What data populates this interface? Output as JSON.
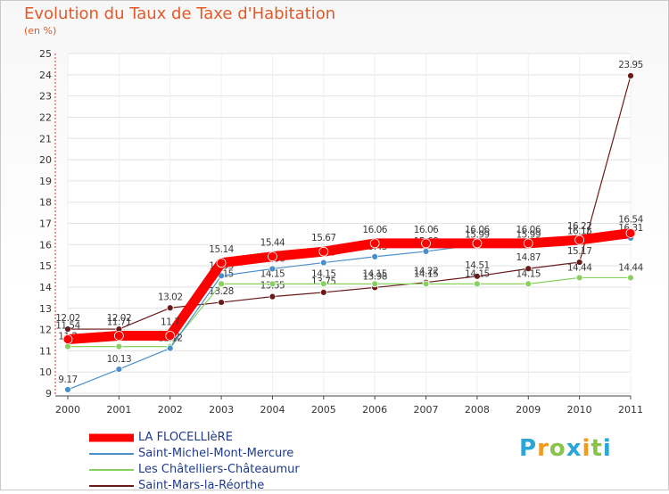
{
  "chart_data": {
    "type": "line",
    "title": "Evolution du Taux de Taxe d'Habitation",
    "ylabel": "(en %)",
    "xlabel": "",
    "ylim": [
      9,
      25
    ],
    "yticks": [
      9,
      10,
      11,
      12,
      13,
      14,
      15,
      16,
      17,
      18,
      19,
      20,
      21,
      22,
      23,
      24,
      25
    ],
    "categories": [
      "2000",
      "2001",
      "2002",
      "2003",
      "2004",
      "2005",
      "2006",
      "2007",
      "2008",
      "2009",
      "2010",
      "2011"
    ],
    "series": [
      {
        "name": "Saint-Mars-la-Réorthe",
        "color": "#6b1a1a",
        "values": [
          12.02,
          12.02,
          13.02,
          13.28,
          13.55,
          13.75,
          13.98,
          14.22,
          14.51,
          14.87,
          15.17,
          23.95
        ],
        "labels": [
          "12.02",
          "12.02",
          "13.02",
          "13.28",
          "13.55",
          "13.75",
          "13.98",
          "14.22",
          "14.51",
          "14.87",
          "15.17",
          "23.95"
        ]
      },
      {
        "name": "Les Châtelliers-Châteaumur",
        "color": "#88d160",
        "values": [
          11.2,
          11.2,
          11.2,
          14.15,
          14.15,
          14.15,
          14.15,
          14.15,
          14.15,
          14.15,
          14.44,
          14.44
        ],
        "labels": [
          "11.2",
          "11.2",
          "11.2",
          "14.15",
          "14.15",
          "14.15",
          "14.15",
          "14.15",
          "14.15",
          "14.15",
          "14.44",
          "14.44"
        ]
      },
      {
        "name": "Saint-Michel-Mont-Mercure",
        "color": "#4a8fc9",
        "values": [
          9.17,
          10.13,
          11.12,
          14.53,
          14.86,
          15.15,
          15.43,
          15.68,
          15.99,
          15.99,
          16.15,
          16.31
        ],
        "labels": [
          "9.17",
          "10.13",
          "11.12",
          "14.53",
          "14.86",
          "15.15",
          "15.43",
          "15.68",
          "15.99",
          "15.99",
          "16.15",
          "16.31"
        ]
      },
      {
        "name": "LA FLOCELLIèRE",
        "color": "#ff0000",
        "values": [
          11.54,
          11.71,
          11.71,
          15.14,
          15.44,
          15.67,
          16.06,
          16.06,
          16.06,
          16.06,
          16.22,
          16.54
        ],
        "labels": [
          "11.54",
          "11.71",
          "11.7",
          "15.14",
          "15.44",
          "15.67",
          "16.06",
          "16.06",
          "16.06",
          "16.06",
          "16.22",
          "16.54"
        ]
      }
    ]
  },
  "legend": {
    "items": [
      {
        "label": "LA FLOCELLIèRE",
        "color": "#ff0000"
      },
      {
        "label": "Saint-Michel-Mont-Mercure",
        "color": "#4a8fc9"
      },
      {
        "label": "Les Châtelliers-Châteaumur",
        "color": "#88d160"
      },
      {
        "label": "Saint-Mars-la-Réorthe",
        "color": "#6b1a1a"
      }
    ]
  },
  "logo": {
    "letters": [
      "P",
      "r",
      "o",
      "x",
      "i",
      "t",
      "i"
    ],
    "colors": [
      "#2aa6d8",
      "#f29a1e",
      "#8bc34a",
      "#2aa6d8",
      "#f29a1e",
      "#8bc34a",
      "#2aa6d8"
    ]
  }
}
